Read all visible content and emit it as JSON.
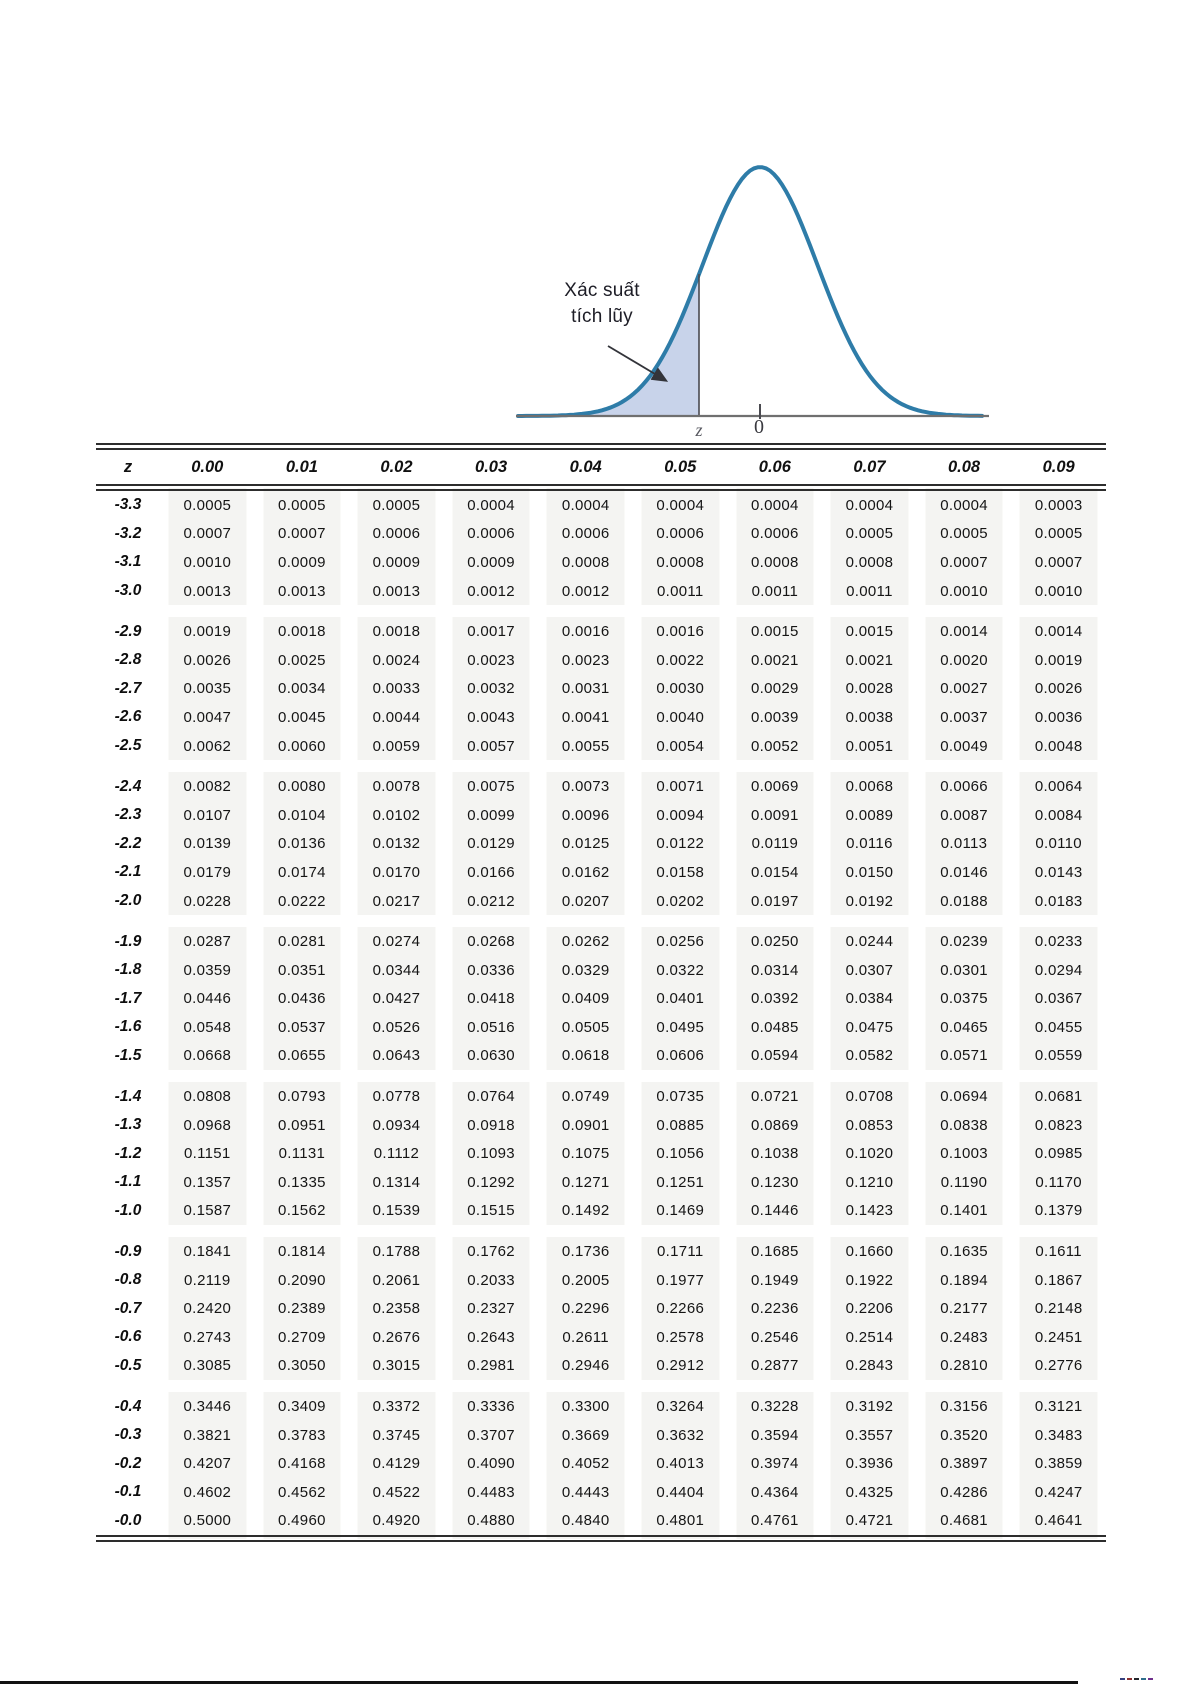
{
  "figure": {
    "annotation": {
      "line1": "Xác suất",
      "line2": "tích lũy"
    },
    "x_axis": {
      "z_label": "z",
      "zero_label": "0"
    },
    "colors": {
      "curve": "#2e7ca8",
      "fill": "#c8d3ea",
      "axis": "#6f6f6f",
      "z_line": "#4a4a50",
      "arrow": "#33343a"
    }
  },
  "table": {
    "header": [
      "z",
      "0.00",
      "0.01",
      "0.02",
      "0.03",
      "0.04",
      "0.05",
      "0.06",
      "0.07",
      "0.08",
      "0.09"
    ],
    "groups": [
      [
        [
          "-3.3",
          "0.0005",
          "0.0005",
          "0.0005",
          "0.0004",
          "0.0004",
          "0.0004",
          "0.0004",
          "0.0004",
          "0.0004",
          "0.0003"
        ],
        [
          "-3.2",
          "0.0007",
          "0.0007",
          "0.0006",
          "0.0006",
          "0.0006",
          "0.0006",
          "0.0006",
          "0.0005",
          "0.0005",
          "0.0005"
        ],
        [
          "-3.1",
          "0.0010",
          "0.0009",
          "0.0009",
          "0.0009",
          "0.0008",
          "0.0008",
          "0.0008",
          "0.0008",
          "0.0007",
          "0.0007"
        ],
        [
          "-3.0",
          "0.0013",
          "0.0013",
          "0.0013",
          "0.0012",
          "0.0012",
          "0.0011",
          "0.0011",
          "0.0011",
          "0.0010",
          "0.0010"
        ]
      ],
      [
        [
          "-2.9",
          "0.0019",
          "0.0018",
          "0.0018",
          "0.0017",
          "0.0016",
          "0.0016",
          "0.0015",
          "0.0015",
          "0.0014",
          "0.0014"
        ],
        [
          "-2.8",
          "0.0026",
          "0.0025",
          "0.0024",
          "0.0023",
          "0.0023",
          "0.0022",
          "0.0021",
          "0.0021",
          "0.0020",
          "0.0019"
        ],
        [
          "-2.7",
          "0.0035",
          "0.0034",
          "0.0033",
          "0.0032",
          "0.0031",
          "0.0030",
          "0.0029",
          "0.0028",
          "0.0027",
          "0.0026"
        ],
        [
          "-2.6",
          "0.0047",
          "0.0045",
          "0.0044",
          "0.0043",
          "0.0041",
          "0.0040",
          "0.0039",
          "0.0038",
          "0.0037",
          "0.0036"
        ],
        [
          "-2.5",
          "0.0062",
          "0.0060",
          "0.0059",
          "0.0057",
          "0.0055",
          "0.0054",
          "0.0052",
          "0.0051",
          "0.0049",
          "0.0048"
        ]
      ],
      [
        [
          "-2.4",
          "0.0082",
          "0.0080",
          "0.0078",
          "0.0075",
          "0.0073",
          "0.0071",
          "0.0069",
          "0.0068",
          "0.0066",
          "0.0064"
        ],
        [
          "-2.3",
          "0.0107",
          "0.0104",
          "0.0102",
          "0.0099",
          "0.0096",
          "0.0094",
          "0.0091",
          "0.0089",
          "0.0087",
          "0.0084"
        ],
        [
          "-2.2",
          "0.0139",
          "0.0136",
          "0.0132",
          "0.0129",
          "0.0125",
          "0.0122",
          "0.0119",
          "0.0116",
          "0.0113",
          "0.0110"
        ],
        [
          "-2.1",
          "0.0179",
          "0.0174",
          "0.0170",
          "0.0166",
          "0.0162",
          "0.0158",
          "0.0154",
          "0.0150",
          "0.0146",
          "0.0143"
        ],
        [
          "-2.0",
          "0.0228",
          "0.0222",
          "0.0217",
          "0.0212",
          "0.0207",
          "0.0202",
          "0.0197",
          "0.0192",
          "0.0188",
          "0.0183"
        ]
      ],
      [
        [
          "-1.9",
          "0.0287",
          "0.0281",
          "0.0274",
          "0.0268",
          "0.0262",
          "0.0256",
          "0.0250",
          "0.0244",
          "0.0239",
          "0.0233"
        ],
        [
          "-1.8",
          "0.0359",
          "0.0351",
          "0.0344",
          "0.0336",
          "0.0329",
          "0.0322",
          "0.0314",
          "0.0307",
          "0.0301",
          "0.0294"
        ],
        [
          "-1.7",
          "0.0446",
          "0.0436",
          "0.0427",
          "0.0418",
          "0.0409",
          "0.0401",
          "0.0392",
          "0.0384",
          "0.0375",
          "0.0367"
        ],
        [
          "-1.6",
          "0.0548",
          "0.0537",
          "0.0526",
          "0.0516",
          "0.0505",
          "0.0495",
          "0.0485",
          "0.0475",
          "0.0465",
          "0.0455"
        ],
        [
          "-1.5",
          "0.0668",
          "0.0655",
          "0.0643",
          "0.0630",
          "0.0618",
          "0.0606",
          "0.0594",
          "0.0582",
          "0.0571",
          "0.0559"
        ]
      ],
      [
        [
          "-1.4",
          "0.0808",
          "0.0793",
          "0.0778",
          "0.0764",
          "0.0749",
          "0.0735",
          "0.0721",
          "0.0708",
          "0.0694",
          "0.0681"
        ],
        [
          "-1.3",
          "0.0968",
          "0.0951",
          "0.0934",
          "0.0918",
          "0.0901",
          "0.0885",
          "0.0869",
          "0.0853",
          "0.0838",
          "0.0823"
        ],
        [
          "-1.2",
          "0.1151",
          "0.1131",
          "0.1112",
          "0.1093",
          "0.1075",
          "0.1056",
          "0.1038",
          "0.1020",
          "0.1003",
          "0.0985"
        ],
        [
          "-1.1",
          "0.1357",
          "0.1335",
          "0.1314",
          "0.1292",
          "0.1271",
          "0.1251",
          "0.1230",
          "0.1210",
          "0.1190",
          "0.1170"
        ],
        [
          "-1.0",
          "0.1587",
          "0.1562",
          "0.1539",
          "0.1515",
          "0.1492",
          "0.1469",
          "0.1446",
          "0.1423",
          "0.1401",
          "0.1379"
        ]
      ],
      [
        [
          "-0.9",
          "0.1841",
          "0.1814",
          "0.1788",
          "0.1762",
          "0.1736",
          "0.1711",
          "0.1685",
          "0.1660",
          "0.1635",
          "0.1611"
        ],
        [
          "-0.8",
          "0.2119",
          "0.2090",
          "0.2061",
          "0.2033",
          "0.2005",
          "0.1977",
          "0.1949",
          "0.1922",
          "0.1894",
          "0.1867"
        ],
        [
          "-0.7",
          "0.2420",
          "0.2389",
          "0.2358",
          "0.2327",
          "0.2296",
          "0.2266",
          "0.2236",
          "0.2206",
          "0.2177",
          "0.2148"
        ],
        [
          "-0.6",
          "0.2743",
          "0.2709",
          "0.2676",
          "0.2643",
          "0.2611",
          "0.2578",
          "0.2546",
          "0.2514",
          "0.2483",
          "0.2451"
        ],
        [
          "-0.5",
          "0.3085",
          "0.3050",
          "0.3015",
          "0.2981",
          "0.2946",
          "0.2912",
          "0.2877",
          "0.2843",
          "0.2810",
          "0.2776"
        ]
      ],
      [
        [
          "-0.4",
          "0.3446",
          "0.3409",
          "0.3372",
          "0.3336",
          "0.3300",
          "0.3264",
          "0.3228",
          "0.3192",
          "0.3156",
          "0.3121"
        ],
        [
          "-0.3",
          "0.3821",
          "0.3783",
          "0.3745",
          "0.3707",
          "0.3669",
          "0.3632",
          "0.3594",
          "0.3557",
          "0.3520",
          "0.3483"
        ],
        [
          "-0.2",
          "0.4207",
          "0.4168",
          "0.4129",
          "0.4090",
          "0.4052",
          "0.4013",
          "0.3974",
          "0.3936",
          "0.3897",
          "0.3859"
        ],
        [
          "-0.1",
          "0.4602",
          "0.4562",
          "0.4522",
          "0.4483",
          "0.4443",
          "0.4404",
          "0.4364",
          "0.4325",
          "0.4286",
          "0.4247"
        ],
        [
          "-0.0",
          "0.5000",
          "0.4960",
          "0.4920",
          "0.4880",
          "0.4840",
          "0.4801",
          "0.4761",
          "0.4721",
          "0.4681",
          "0.4641"
        ]
      ]
    ]
  }
}
